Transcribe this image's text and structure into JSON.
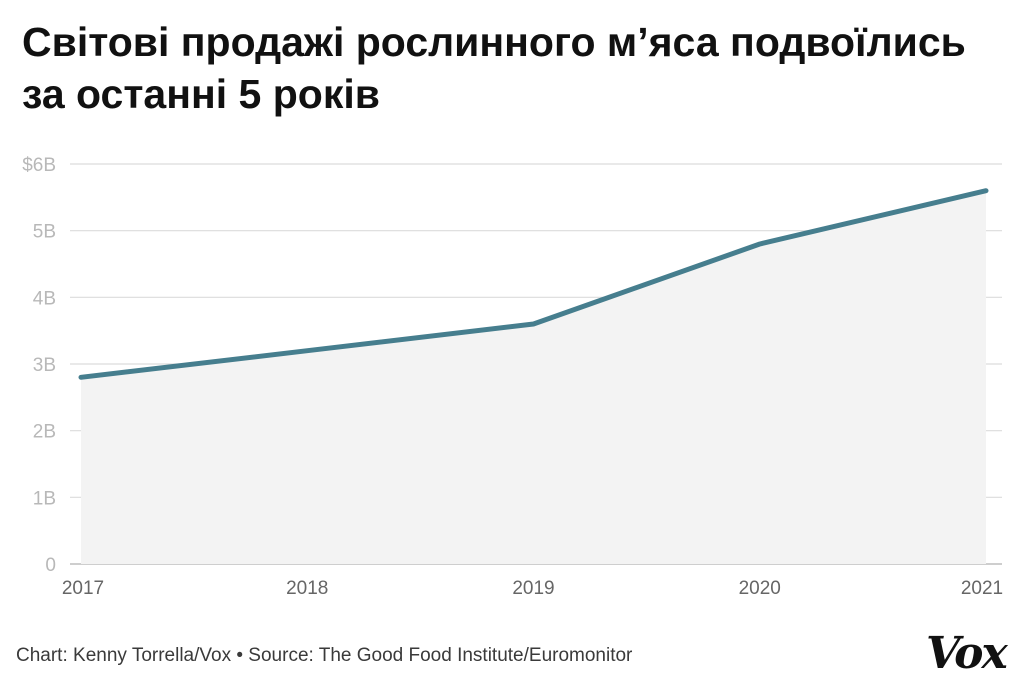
{
  "chart_data": {
    "type": "area",
    "title": "Світові продажі рослинного м’яса подвоїлись за останні 5 років",
    "x": [
      "2017",
      "2018",
      "2019",
      "2020",
      "2021"
    ],
    "values": [
      2.8,
      3.2,
      3.6,
      4.8,
      5.6
    ],
    "ylim": [
      0,
      6
    ],
    "y_ticks": [
      0,
      1,
      2,
      3,
      4,
      5,
      6
    ],
    "y_tick_labels": [
      "0",
      "1B",
      "2B",
      "3B",
      "4B",
      "5B",
      "$6B"
    ],
    "grid": true,
    "colors": {
      "line": "#467e8e",
      "area": "#f3f3f3",
      "grid": "#dcdcdc",
      "tick_text": "#b8b8b8",
      "x_text": "#666666"
    }
  },
  "footer": {
    "credit": "Chart: Kenny Torrella/Vox • Source: The Good Food Institute/Euromonitor",
    "logo": "Vox"
  }
}
